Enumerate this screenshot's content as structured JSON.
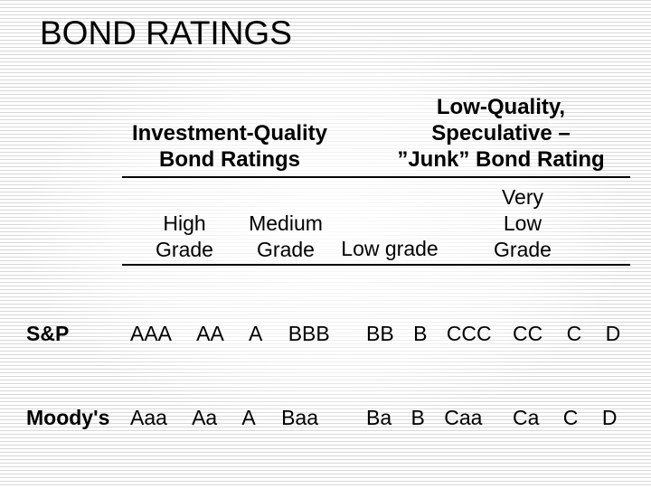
{
  "slide": {
    "title": "BOND RATINGS",
    "columns": {
      "investment": {
        "header_lines": [
          "Investment-Quality",
          "Bond Ratings"
        ]
      },
      "junk": {
        "header_lines": [
          "Low-Quality,",
          "Speculative –",
          "”Junk” Bond Rating"
        ]
      }
    },
    "grade_headers": {
      "high": [
        "High",
        "Grade"
      ],
      "medium": [
        "Medium",
        "Grade"
      ],
      "low": [
        "Low grade"
      ],
      "very_low": [
        "Very",
        "Low",
        "Grade"
      ]
    },
    "rows": [
      {
        "agency": "S&P",
        "investment": [
          "AAA",
          "AA",
          "A",
          "BBB"
        ],
        "low": [
          "BB",
          "B",
          "CCC"
        ],
        "very_low": [
          "CC",
          "C",
          "D"
        ]
      },
      {
        "agency": "Moody's",
        "investment": [
          "Aaa",
          "Aa",
          "A",
          "Baa"
        ],
        "low": [
          "Ba",
          "B",
          "Caa"
        ],
        "very_low": [
          "Ca",
          "C",
          "D"
        ]
      }
    ],
    "colors": {
      "text": "#000000",
      "stripe": "#d8d8d8",
      "background": "#ffffff",
      "rule": "#000000"
    }
  }
}
